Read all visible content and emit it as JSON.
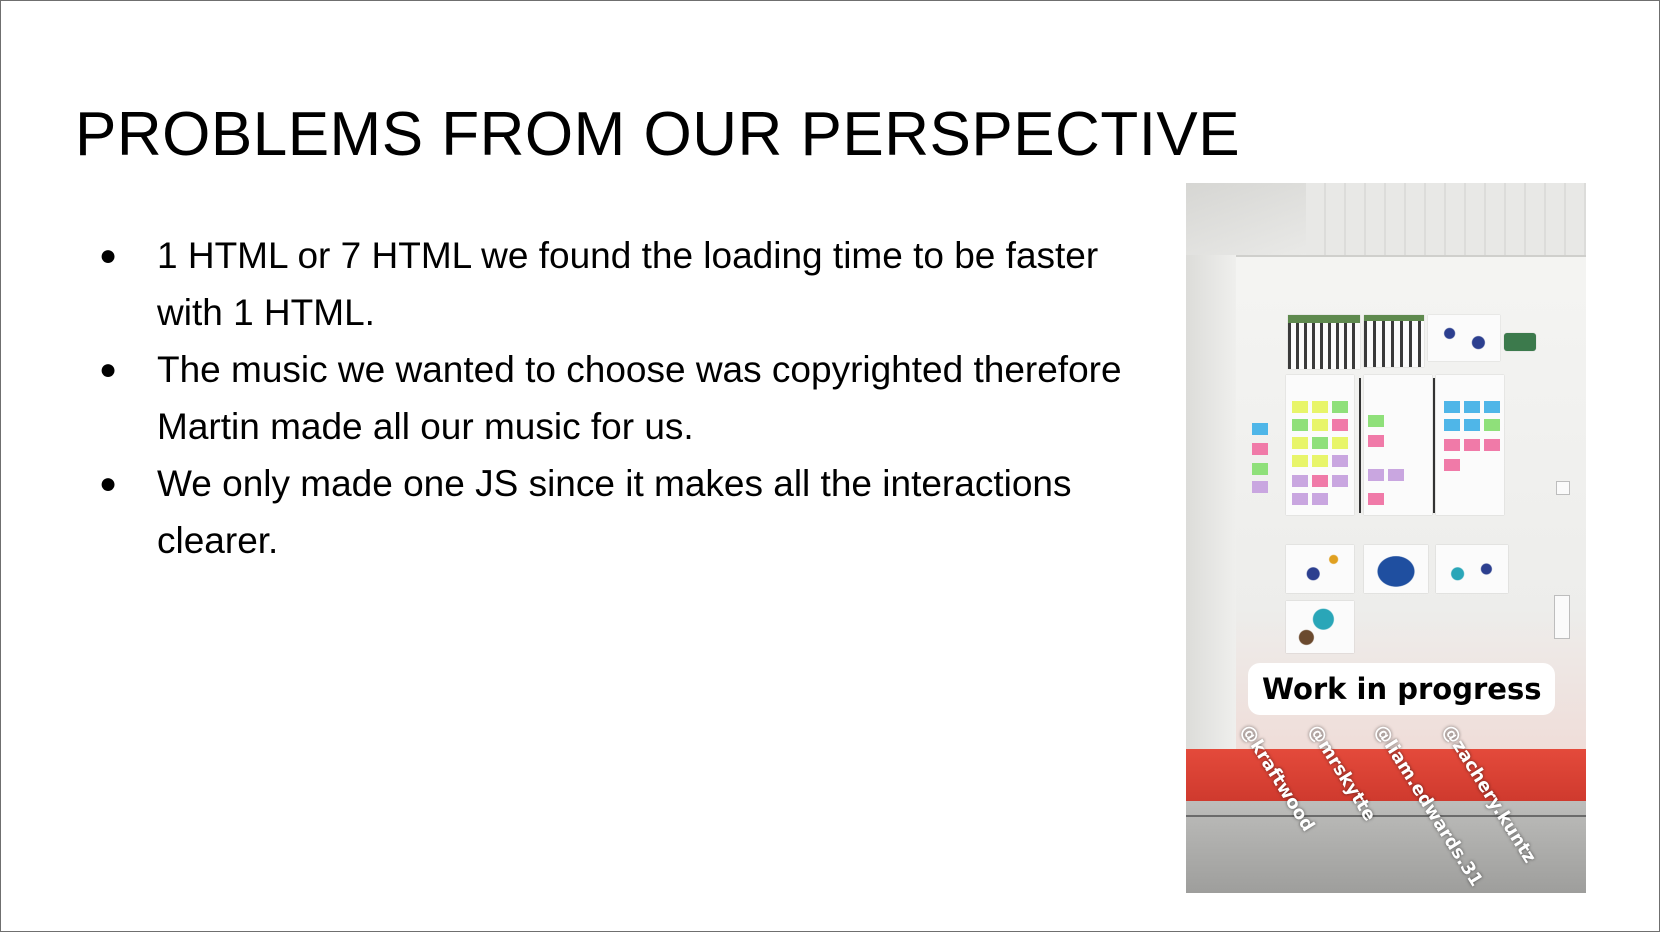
{
  "slide": {
    "title": "PROBLEMS FROM OUR PERSPECTIVE",
    "bullet_glyph": "●",
    "bullets": [
      "1 HTML or 7 HTML we found the loading time to be faster with 1 HTML.",
      "The music we wanted to choose was copyrighted therefore Martin made all our music for us.",
      "We only made one JS since it makes all the interactions clearer."
    ]
  },
  "photo": {
    "caption": "Work in progress",
    "mentions": [
      "@kraftwood",
      "@mrskytte",
      "@liam.edwards.31",
      "@zachery.kuntz"
    ],
    "colors": {
      "bench": "#d9463a",
      "sticky_yellow": "#e8f56a",
      "sticky_pink": "#f07aa8",
      "sticky_blue": "#4fb6e8",
      "sticky_green": "#8fe07a",
      "sticky_purple": "#c9a6e0"
    }
  }
}
